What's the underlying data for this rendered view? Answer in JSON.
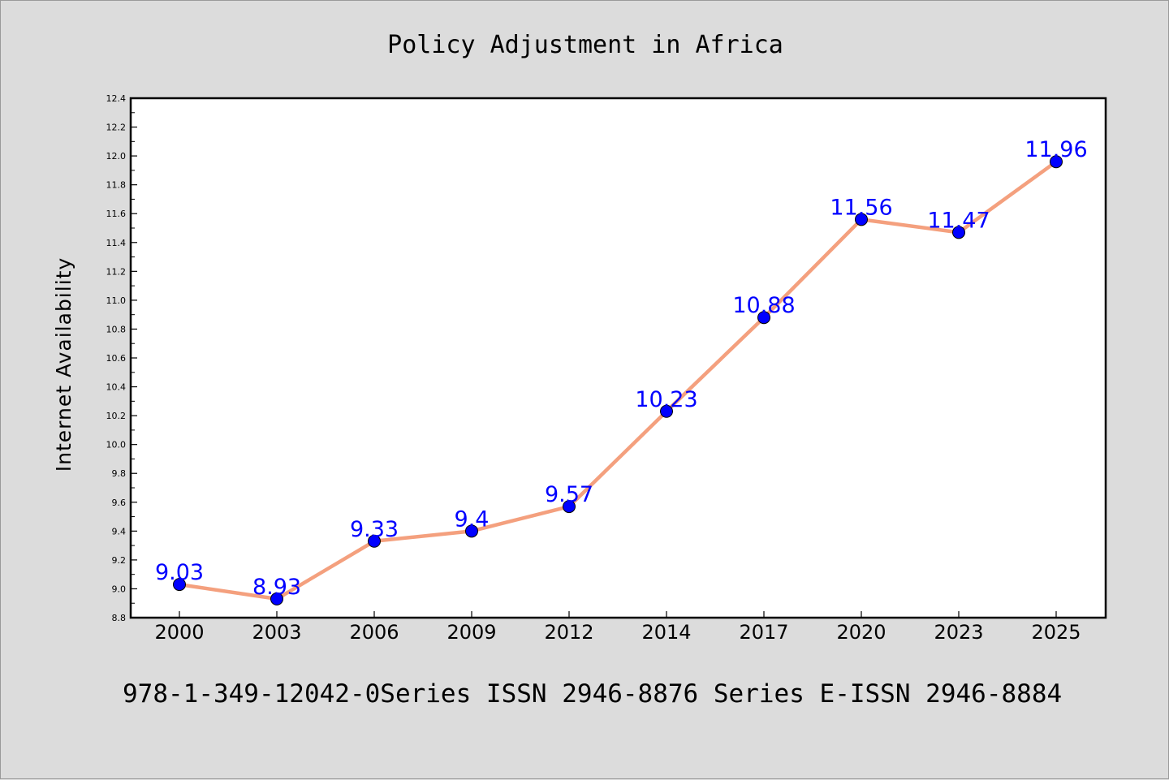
{
  "chart_data": {
    "type": "line",
    "title": "Policy Adjustment in Africa",
    "xlabel": "",
    "ylabel": "Internet Availability",
    "categories": [
      "2000",
      "2003",
      "2006",
      "2009",
      "2012",
      "2014",
      "2017",
      "2020",
      "2023",
      "2025"
    ],
    "series": [
      {
        "values": [
          9.03,
          8.93,
          9.33,
          9.4,
          9.57,
          10.23,
          10.88,
          11.56,
          11.47,
          11.96
        ],
        "line_color": "#f4a07e",
        "marker_color": "#0000ff"
      }
    ],
    "data_labels": [
      "9.03",
      "8.93",
      "9.33",
      "9.4",
      "9.57",
      "10.23",
      "10.88",
      "11.56",
      "11.47",
      "11.96"
    ],
    "ylim": [
      8.8,
      12.4
    ],
    "yticks": [
      "8.8",
      "9.0",
      "9.2",
      "9.4",
      "9.6",
      "9.8",
      "10.0",
      "10.2",
      "10.4",
      "10.6",
      "10.8",
      "11.0",
      "11.2",
      "11.4",
      "11.6",
      "11.8",
      "12.0",
      "12.2",
      "12.4"
    ],
    "grid": false,
    "legend": "none"
  },
  "footer": {
    "text": "978-1-349-12042-0Series ISSN 2946-8876 Series E-ISSN 2946-8884"
  }
}
